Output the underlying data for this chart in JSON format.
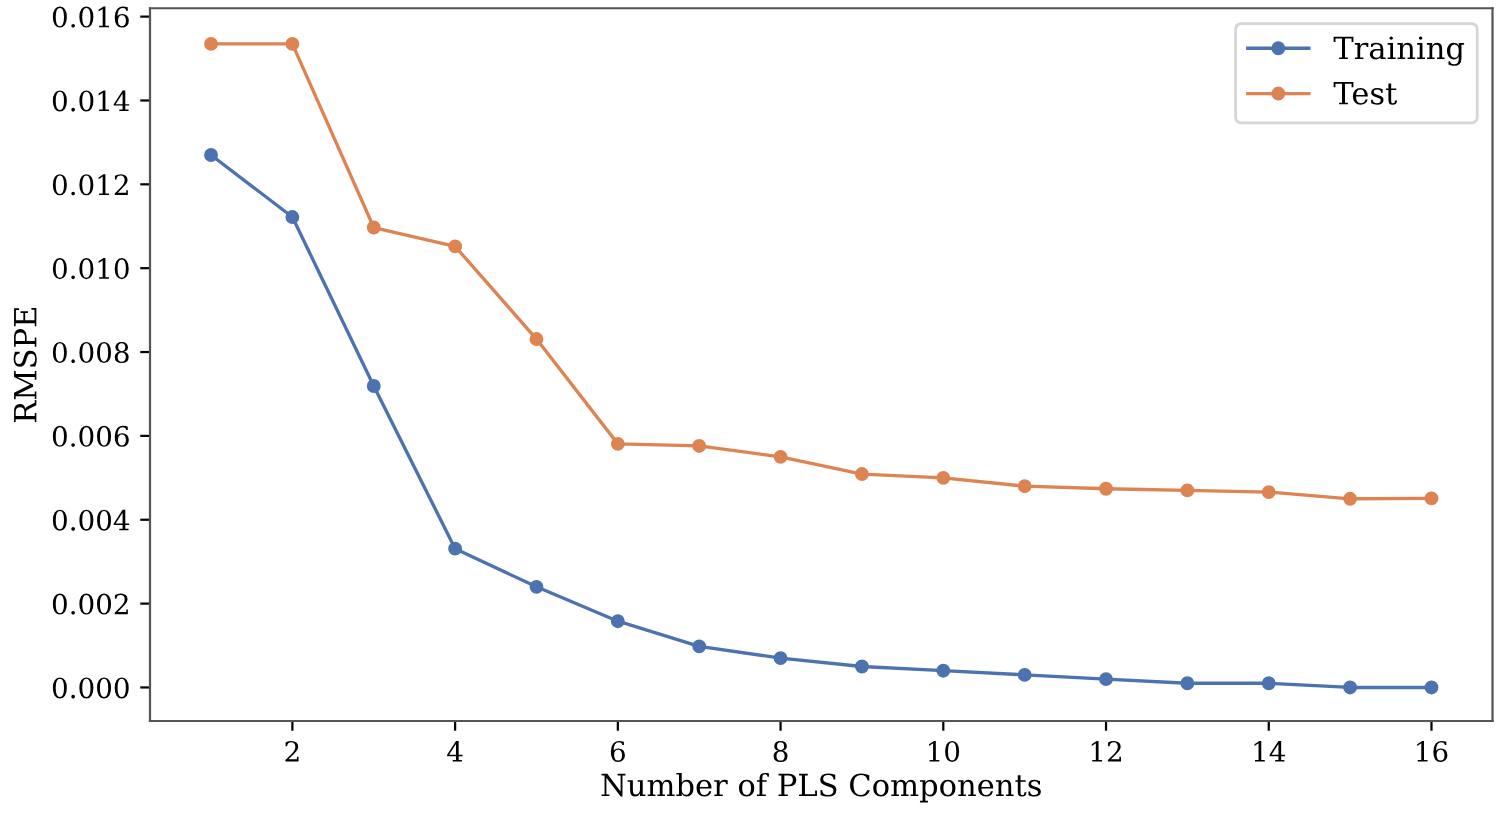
{
  "chart_data": {
    "type": "line",
    "xlabel": "Number of PLS Components",
    "ylabel": "RMSPE",
    "x": [
      1,
      2,
      3,
      4,
      5,
      6,
      7,
      8,
      9,
      10,
      11,
      12,
      13,
      14,
      15,
      16
    ],
    "series": [
      {
        "name": "Training",
        "color": "#4c72b0",
        "values": [
          0.0127,
          0.01122,
          0.00719,
          0.00331,
          0.0024,
          0.00158,
          0.00098,
          0.0007,
          0.0005,
          0.0004,
          0.0003,
          0.0002,
          0.0001,
          0.0001,
          0.0,
          0.0
        ]
      },
      {
        "name": "Test",
        "color": "#dd8452",
        "values": [
          0.01535,
          0.01535,
          0.01097,
          0.01052,
          0.00831,
          0.00581,
          0.00576,
          0.0055,
          0.00509,
          0.005,
          0.0048,
          0.00474,
          0.0047,
          0.00466,
          0.0045,
          0.00451
        ]
      }
    ],
    "xlim": [
      0.25,
      16.75
    ],
    "xticks": [
      2,
      4,
      6,
      8,
      10,
      12,
      14,
      16
    ],
    "ylim": [
      -0.0008,
      0.0162
    ],
    "yticks": [
      {
        "value": 0,
        "label": "0.000"
      },
      {
        "value": 0.002,
        "label": "0.002"
      },
      {
        "value": 0.004,
        "label": "0.004"
      },
      {
        "value": 0.006,
        "label": "0.006"
      },
      {
        "value": 0.008,
        "label": "0.008"
      },
      {
        "value": 0.01,
        "label": "0.010"
      },
      {
        "value": 0.012,
        "label": "0.012"
      },
      {
        "value": 0.014,
        "label": "0.014"
      },
      {
        "value": 0.016,
        "label": "0.016"
      }
    ],
    "marker": "circle",
    "line_style": "solid",
    "legend": "top right",
    "grid": false
  }
}
